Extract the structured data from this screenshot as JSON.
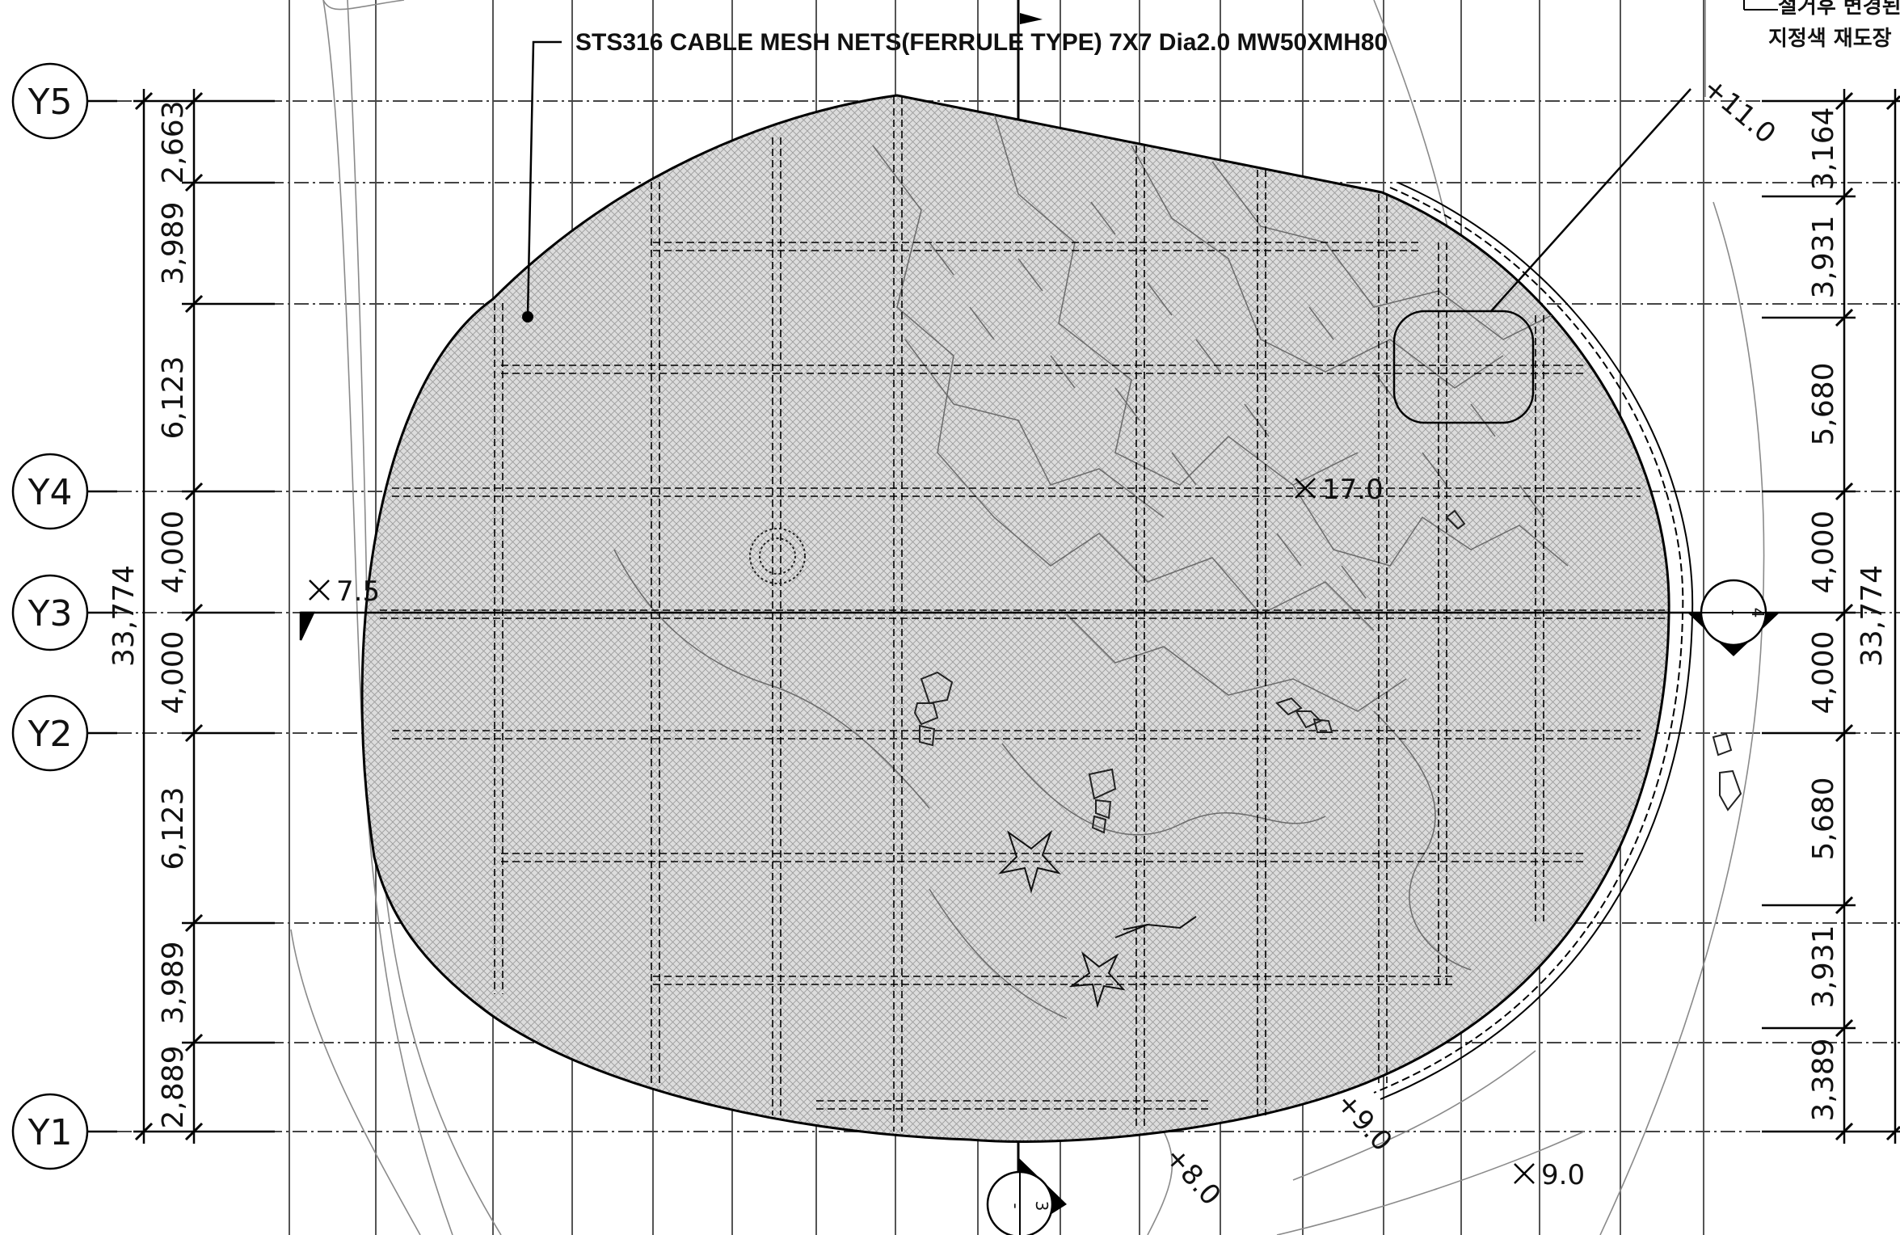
{
  "drawing": {
    "material_callout": "STS316 CABLE MESH NETS(FERRULE TYPE) 7X7 Dia2.0 MW50XMH80",
    "corner_note_lines": [
      "철거후 변경된",
      "지정색 재도장"
    ],
    "grid_labels": [
      "Y5",
      "Y4",
      "Y3",
      "Y2",
      "Y1"
    ],
    "left_dimensions": [
      "2,663",
      "3,989",
      "6,123",
      "4,000",
      "4,000",
      "6,123",
      "3,989",
      "2,889"
    ],
    "left_total": "33,774",
    "right_dimensions": [
      "3,164",
      "3,931",
      "5,680",
      "4,000",
      "4,000",
      "5,680",
      "3,931",
      "3,389"
    ],
    "right_total": "33,774",
    "spot_levels": {
      "left": "7.5",
      "center": "17.0",
      "bottom_right": "9.0",
      "contour_top_right": "+11.0",
      "contour_bottom_a": "+9.0",
      "contour_bottom_b": "+8.0"
    },
    "section_markers": {
      "right": {
        "number": "4",
        "sheet": "-"
      },
      "bottom": {
        "number": "3",
        "sheet": "-"
      }
    }
  }
}
